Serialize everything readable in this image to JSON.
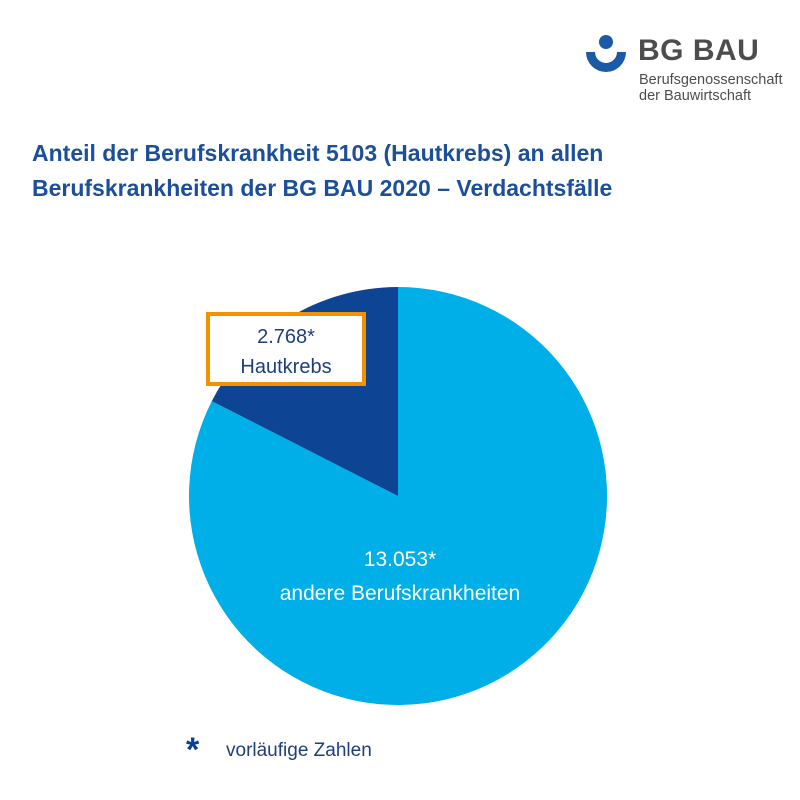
{
  "logo": {
    "name": "BG BAU",
    "subtitle_line1": "Berufsgenossenschaft",
    "subtitle_line2": "der Bauwirtschaft"
  },
  "title": {
    "line1": "Anteil der Berufskrankheit 5103 (Hautkrebs) an allen",
    "line2": "Berufskrankheiten der BG BAU 2020 – Verdachtsfälle"
  },
  "footnote": {
    "symbol": "*",
    "text": "vorläufige Zahlen"
  },
  "colors": {
    "title": "#1b4f9b",
    "slice_small": "#0d4594",
    "slice_large": "#00aee8",
    "highlight_border": "#f39200",
    "logo_blue": "#1a5aa6"
  },
  "chart_data": {
    "type": "pie",
    "slices": [
      {
        "label": "Hautkrebs",
        "value": 2768,
        "value_label": "2.768*",
        "color": "#0d4594"
      },
      {
        "label": "andere Berufskrankheiten",
        "value": 13053,
        "value_label": "13.053*",
        "color": "#00aee8"
      }
    ]
  }
}
